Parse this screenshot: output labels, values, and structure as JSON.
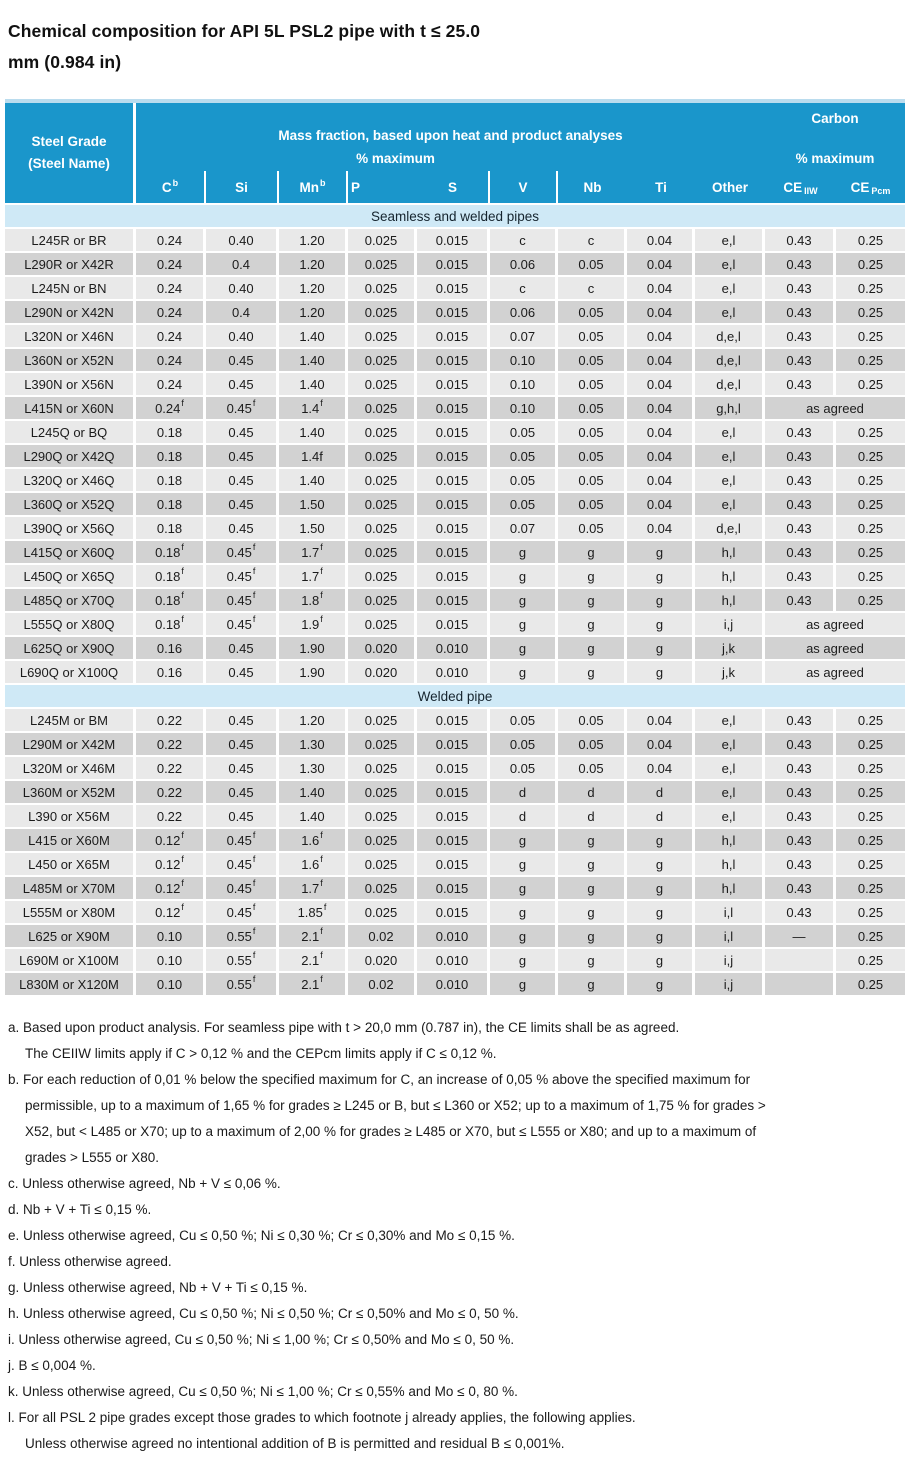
{
  "title": {
    "line1": "Chemical composition for API 5L PSL2 pipe with t ≤ 25.0",
    "line2": "mm (0.984 in)"
  },
  "table": {
    "header": {
      "steel_grade_line1": "Steel Grade",
      "steel_grade_line2": "(Steel Name)",
      "mass_fraction": "Mass fraction, based upon heat and product analyses",
      "carbon": "Carbon",
      "pct_maximum_left": "% maximum",
      "pct_maximum_right": "% maximum",
      "columns": [
        {
          "t": "C",
          "sup": "b"
        },
        {
          "t": "Si"
        },
        {
          "t": "Mn",
          "sup": "b"
        },
        {
          "t": "P"
        },
        {
          "t": "S"
        },
        {
          "t": "V"
        },
        {
          "t": "Nb"
        },
        {
          "t": "Ti"
        },
        {
          "t": "Other"
        },
        {
          "t": "CE",
          "sub": "IIW"
        },
        {
          "t": "CE",
          "sub": "Pcm"
        }
      ]
    },
    "sections": [
      {
        "name": "Seamless and welded pipes",
        "rows": [
          {
            "grade": "L245R or BR",
            "cells": [
              "0.24",
              "0.40",
              "1.20",
              "0.025",
              "0.015",
              "c",
              "c",
              "0.04",
              "e,l",
              "0.43",
              "0.25"
            ]
          },
          {
            "grade": "L290R or X42R",
            "cells": [
              "0.24",
              "0.4",
              "1.20",
              "0.025",
              "0.015",
              "0.06",
              "0.05",
              "0.04",
              "e,l",
              "0.43",
              "0.25"
            ]
          },
          {
            "grade": "L245N or BN",
            "cells": [
              "0.24",
              "0.40",
              "1.20",
              "0.025",
              "0.015",
              "c",
              "c",
              "0.04",
              "e,l",
              "0.43",
              "0.25"
            ]
          },
          {
            "grade": "L290N or X42N",
            "cells": [
              "0.24",
              "0.4",
              "1.20",
              "0.025",
              "0.015",
              "0.06",
              "0.05",
              "0.04",
              "e,l",
              "0.43",
              "0.25"
            ]
          },
          {
            "grade": "L320N or X46N",
            "cells": [
              "0.24",
              "0.40",
              "1.40",
              "0.025",
              "0.015",
              "0.07",
              "0.05",
              "0.04",
              "d,e,l",
              "0.43",
              "0.25"
            ]
          },
          {
            "grade": "L360N or X52N",
            "cells": [
              "0.24",
              "0.45",
              "1.40",
              "0.025",
              "0.015",
              "0.10",
              "0.05",
              "0.04",
              "d,e,l",
              "0.43",
              "0.25"
            ]
          },
          {
            "grade": "L390N or X56N",
            "cells": [
              "0.24",
              "0.45",
              "1.40",
              "0.025",
              "0.015",
              "0.10",
              "0.05",
              "0.04",
              "d,e,l",
              "0.43",
              "0.25"
            ]
          },
          {
            "grade": "L415N or X60N",
            "cells": [
              {
                "t": "0.24",
                "sup": "f"
              },
              {
                "t": "0.45",
                "sup": "f"
              },
              {
                "t": "1.4",
                "sup": "f"
              },
              "0.025",
              "0.015",
              "0.10",
              "0.05",
              "0.04",
              "g,h,l",
              {
                "t": "as agreed",
                "span": 2
              }
            ]
          },
          {
            "grade": "L245Q or BQ",
            "cells": [
              "0.18",
              "0.45",
              "1.40",
              "0.025",
              "0.015",
              "0.05",
              "0.05",
              "0.04",
              "e,l",
              "0.43",
              "0.25"
            ]
          },
          {
            "grade": "L290Q or X42Q",
            "cells": [
              "0.18",
              "0.45",
              "1.4f",
              "0.025",
              "0.015",
              "0.05",
              "0.05",
              "0.04",
              "e,l",
              "0.43",
              "0.25"
            ]
          },
          {
            "grade": "L320Q or X46Q",
            "cells": [
              "0.18",
              "0.45",
              "1.40",
              "0.025",
              "0.015",
              "0.05",
              "0.05",
              "0.04",
              "e,l",
              "0.43",
              "0.25"
            ]
          },
          {
            "grade": "L360Q or X52Q",
            "cells": [
              "0.18",
              "0.45",
              "1.50",
              "0.025",
              "0.015",
              "0.05",
              "0.05",
              "0.04",
              "e,l",
              "0.43",
              "0.25"
            ]
          },
          {
            "grade": "L390Q or X56Q",
            "cells": [
              "0.18",
              "0.45",
              "1.50",
              "0.025",
              "0.015",
              "0.07",
              "0.05",
              "0.04",
              "d,e,l",
              "0.43",
              "0.25"
            ]
          },
          {
            "grade": "L415Q or X60Q",
            "cells": [
              {
                "t": "0.18",
                "sup": "f"
              },
              {
                "t": "0.45",
                "sup": "f"
              },
              {
                "t": "1.7",
                "sup": "f"
              },
              "0.025",
              "0.015",
              "g",
              "g",
              "g",
              "h,l",
              "0.43",
              "0.25"
            ]
          },
          {
            "grade": "L450Q or X65Q",
            "cells": [
              {
                "t": "0.18",
                "sup": "f"
              },
              {
                "t": "0.45",
                "sup": "f"
              },
              {
                "t": "1.7",
                "sup": "f"
              },
              "0.025",
              "0.015",
              "g",
              "g",
              "g",
              "h,l",
              "0.43",
              "0.25"
            ]
          },
          {
            "grade": "L485Q or X70Q",
            "cells": [
              {
                "t": "0.18",
                "sup": "f"
              },
              {
                "t": "0.45",
                "sup": "f"
              },
              {
                "t": "1.8",
                "sup": "f"
              },
              "0.025",
              "0.015",
              "g",
              "g",
              "g",
              "h,l",
              "0.43",
              "0.25"
            ]
          },
          {
            "grade": "L555Q or X80Q",
            "cells": [
              {
                "t": "0.18",
                "sup": "f"
              },
              {
                "t": "0.45",
                "sup": "f"
              },
              {
                "t": "1.9",
                "sup": "f"
              },
              "0.025",
              "0.015",
              "g",
              "g",
              "g",
              "i,j",
              {
                "t": "as agreed",
                "span": 2
              }
            ]
          },
          {
            "grade": "L625Q or X90Q",
            "cells": [
              "0.16",
              "0.45",
              "1.90",
              "0.020",
              "0.010",
              "g",
              "g",
              "g",
              "j,k",
              {
                "t": "as agreed",
                "span": 2
              }
            ]
          },
          {
            "grade": "L690Q or X100Q",
            "cells": [
              "0.16",
              "0.45",
              "1.90",
              "0.020",
              "0.010",
              "g",
              "g",
              "g",
              "j,k",
              {
                "t": "as agreed",
                "span": 2
              }
            ]
          }
        ]
      },
      {
        "name": "Welded pipe",
        "rows": [
          {
            "grade": "L245M or BM",
            "cells": [
              "0.22",
              "0.45",
              "1.20",
              "0.025",
              "0.015",
              "0.05",
              "0.05",
              "0.04",
              "e,l",
              "0.43",
              "0.25"
            ]
          },
          {
            "grade": "L290M or X42M",
            "cells": [
              "0.22",
              "0.45",
              "1.30",
              "0.025",
              "0.015",
              "0.05",
              "0.05",
              "0.04",
              "e,l",
              "0.43",
              "0.25"
            ]
          },
          {
            "grade": "L320M or X46M",
            "cells": [
              "0.22",
              "0.45",
              "1.30",
              "0.025",
              "0.015",
              "0.05",
              "0.05",
              "0.04",
              "e,l",
              "0.43",
              "0.25"
            ]
          },
          {
            "grade": "L360M or X52M",
            "cells": [
              "0.22",
              "0.45",
              "1.40",
              "0.025",
              "0.015",
              "d",
              "d",
              "d",
              "e,l",
              "0.43",
              "0.25"
            ]
          },
          {
            "grade": "L390 or X56M",
            "cells": [
              "0.22",
              "0.45",
              "1.40",
              "0.025",
              "0.015",
              "d",
              "d",
              "d",
              "e,l",
              "0.43",
              "0.25"
            ]
          },
          {
            "grade": "L415 or X60M",
            "cells": [
              {
                "t": "0.12",
                "sup": "f"
              },
              {
                "t": "0.45",
                "sup": "f"
              },
              {
                "t": "1.6",
                "sup": "f"
              },
              "0.025",
              "0.015",
              "g",
              "g",
              "g",
              "h,l",
              "0.43",
              "0.25"
            ]
          },
          {
            "grade": "L450 or X65M",
            "cells": [
              {
                "t": "0.12",
                "sup": "f"
              },
              {
                "t": "0.45",
                "sup": "f"
              },
              {
                "t": "1.6",
                "sup": "f"
              },
              "0.025",
              "0.015",
              "g",
              "g",
              "g",
              "h,l",
              "0.43",
              "0.25"
            ]
          },
          {
            "grade": "L485M or X70M",
            "cells": [
              {
                "t": "0.12",
                "sup": "f"
              },
              {
                "t": "0.45",
                "sup": "f"
              },
              {
                "t": "1.7",
                "sup": "f"
              },
              "0.025",
              "0.015",
              "g",
              "g",
              "g",
              "h,l",
              "0.43",
              "0.25"
            ]
          },
          {
            "grade": "L555M or X80M",
            "cells": [
              {
                "t": "0.12",
                "sup": "f"
              },
              {
                "t": "0.45",
                "sup": "f"
              },
              {
                "t": "1.85",
                "sup": "f"
              },
              "0.025",
              "0.015",
              "g",
              "g",
              "g",
              "i,l",
              "0.43",
              "0.25"
            ]
          },
          {
            "grade": "L625 or X90M",
            "cells": [
              "0.10",
              {
                "t": "0.55",
                "sup": "f"
              },
              {
                "t": "2.1",
                "sup": "f"
              },
              "0.02",
              "0.010",
              "g",
              "g",
              "g",
              "i,l",
              "—",
              "0.25"
            ]
          },
          {
            "grade": "L690M or X100M",
            "cells": [
              "0.10",
              {
                "t": "0.55",
                "sup": "f"
              },
              {
                "t": "2.1",
                "sup": "f"
              },
              "0.020",
              "0.010",
              "g",
              "g",
              "g",
              "i,j",
              "",
              "0.25"
            ]
          },
          {
            "grade": "L830M or X120M",
            "cells": [
              "0.10",
              {
                "t": "0.55",
                "sup": "f"
              },
              {
                "t": "2.1",
                "sup": "f"
              },
              "0.02",
              "0.010",
              "g",
              "g",
              "g",
              "i,j",
              "",
              "0.25"
            ]
          }
        ]
      }
    ]
  },
  "footnotes": [
    {
      "lines": [
        "a. Based upon product analysis. For seamless pipe with t > 20,0 mm (0.787 in), the CE limits shall be as agreed.",
        "The CEIIW limits apply if C > 0,12 % and the CEPcm limits apply if C ≤ 0,12 %."
      ]
    },
    {
      "lines": [
        "b. For each reduction of 0,01 % below the specified maximum for C, an increase of 0,05 % above the specified maximum for",
        "permissible, up to a maximum of 1,65 % for grades ≥ L245 or B, but ≤ L360 or X52; up to a maximum of 1,75 % for grades >",
        "X52, but < L485 or X70; up to a maximum of 2,00 % for grades ≥ L485 or X70, but ≤ L555 or X80; and up to a maximum of",
        "grades > L555 or X80."
      ]
    },
    {
      "lines": [
        "c. Unless otherwise agreed, Nb + V ≤ 0,06 %."
      ]
    },
    {
      "lines": [
        "d. Nb + V + Ti ≤ 0,15 %."
      ]
    },
    {
      "lines": [
        "e. Unless otherwise agreed, Cu ≤ 0,50 %; Ni ≤ 0,30 %; Cr ≤ 0,30% and Mo ≤ 0,15 %."
      ]
    },
    {
      "lines": [
        "f. Unless otherwise agreed."
      ]
    },
    {
      "lines": [
        "g. Unless otherwise agreed, Nb + V + Ti ≤ 0,15 %."
      ]
    },
    {
      "lines": [
        "h. Unless otherwise agreed, Cu ≤ 0,50 %; Ni ≤ 0,50 %; Cr ≤ 0,50% and Mo ≤ 0, 50 %."
      ]
    },
    {
      "lines": [
        "i. Unless otherwise agreed, Cu ≤ 0,50 %; Ni ≤ 1,00 %; Cr ≤ 0,50% and Mo ≤ 0, 50 %."
      ]
    },
    {
      "lines": [
        "j. B ≤ 0,004 %."
      ]
    },
    {
      "lines": [
        "k. Unless otherwise agreed, Cu ≤ 0,50 %; Ni ≤ 1,00 %; Cr ≤ 0,55% and Mo ≤ 0, 80 %."
      ]
    },
    {
      "lines": [
        "l. For all PSL 2 pipe grades except those grades to which footnote j already applies, the following applies.",
        "Unless otherwise agreed no intentional addition of B is permitted and residual B ≤ 0,001%."
      ]
    }
  ],
  "colors": {
    "header_blue": "#1a96cb",
    "section_band_blue": "#cfe9f6",
    "row_light": "#e9e9e9",
    "row_dark": "#d2d2d2"
  }
}
